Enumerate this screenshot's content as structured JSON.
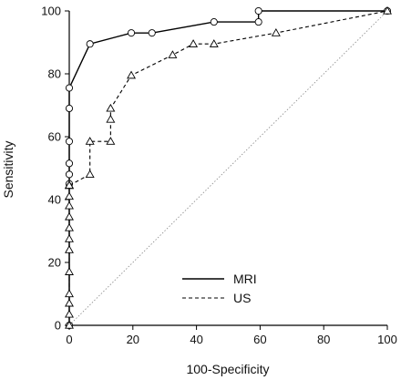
{
  "chart_data": {
    "type": "line",
    "title": "",
    "xlabel": "100-Specificity",
    "ylabel": "Sensitivity",
    "xlim": [
      0,
      100
    ],
    "ylim": [
      0,
      100
    ],
    "xticks": [
      "0",
      "20",
      "40",
      "60",
      "80",
      "100"
    ],
    "yticks": [
      "0",
      "20",
      "40",
      "60",
      "80",
      "100"
    ],
    "grid": false,
    "legend_position": "bottom-center",
    "reference_line": {
      "style": "dotted",
      "from": [
        0,
        0
      ],
      "to": [
        100,
        100
      ]
    },
    "series": [
      {
        "name": "MRI",
        "line_style": "solid",
        "marker": "circle",
        "x": [
          0,
          0,
          0,
          0,
          0,
          0,
          0,
          6.5,
          19.5,
          26,
          45.5,
          59.5,
          59.5,
          100
        ],
        "y": [
          0,
          45,
          48,
          51.5,
          58.5,
          69,
          75.5,
          89.5,
          93,
          93,
          96.5,
          96.5,
          100,
          100
        ]
      },
      {
        "name": "US",
        "line_style": "dashed",
        "marker": "triangle",
        "x": [
          0,
          0,
          0,
          0,
          0,
          0,
          0,
          0,
          0,
          0,
          0,
          0,
          0,
          0,
          0,
          6.5,
          6.5,
          13,
          13,
          13,
          19.5,
          32.5,
          39,
          45.5,
          65,
          100
        ],
        "y": [
          0,
          3.5,
          7,
          10,
          17,
          24,
          27.5,
          31,
          34.5,
          38,
          41,
          44.5,
          44.5,
          44.5,
          44.5,
          48,
          58.5,
          58.5,
          65.5,
          69,
          79.5,
          86,
          89.5,
          89.5,
          93,
          100
        ]
      }
    ]
  }
}
